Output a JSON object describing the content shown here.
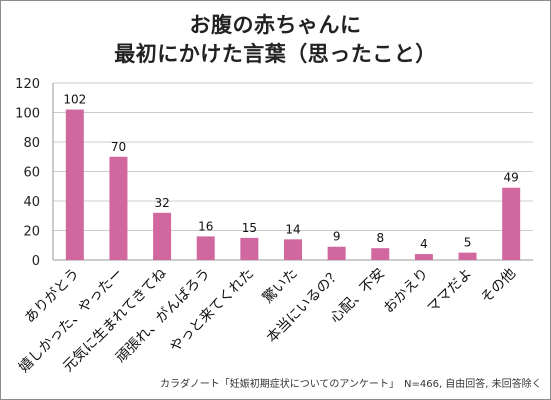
{
  "chart_data": {
    "type": "bar",
    "title_lines": [
      "お腹の赤ちゃんに",
      "最初にかけた言葉（思ったこと）"
    ],
    "categories": [
      "ありがとう",
      "嬉しかった、やったー",
      "元気に生まれてきてね",
      "頑張れ、がんばろう",
      "やっと来てくれた",
      "驚いた",
      "本当にいるの？",
      "心配、不安",
      "おかえり",
      "ママだよ",
      "その他"
    ],
    "values": [
      102,
      70,
      32,
      16,
      15,
      14,
      9,
      8,
      4,
      5,
      49
    ],
    "ylim": [
      0,
      120
    ],
    "yticks": [
      0,
      20,
      40,
      60,
      80,
      100,
      120
    ],
    "grid": true,
    "bar_color": "#d0679f",
    "source_note": "カラダノート「妊娠初期症状についてのアンケート」　N=466, 自由回答, 未回答除く"
  }
}
